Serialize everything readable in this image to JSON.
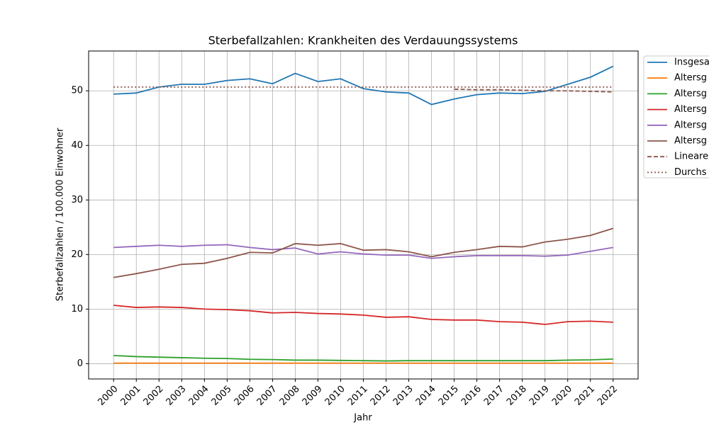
{
  "chart_data": {
    "type": "line",
    "title": "Sterbefallzahlen: Krankheiten des Verdauungssystems",
    "xlabel": "Jahr",
    "ylabel": "Sterbefallzahlen / 100.000 Einwohner",
    "x": [
      2000,
      2001,
      2002,
      2003,
      2004,
      2005,
      2006,
      2007,
      2008,
      2009,
      2010,
      2011,
      2012,
      2013,
      2014,
      2015,
      2016,
      2017,
      2018,
      2019,
      2020,
      2021,
      2022
    ],
    "xlim": [
      1998.9,
      2023.1
    ],
    "xticks": [
      2000,
      2001,
      2002,
      2003,
      2004,
      2005,
      2006,
      2007,
      2008,
      2009,
      2010,
      2011,
      2012,
      2013,
      2014,
      2015,
      2016,
      2017,
      2018,
      2019,
      2020,
      2021,
      2022
    ],
    "ylim": [
      -2.8,
      57.3
    ],
    "yticks": [
      0,
      10,
      20,
      30,
      40,
      50
    ],
    "grid": true,
    "legend": "outside upper right",
    "series": [
      {
        "name": "Insgesa",
        "color": "#1f77b4",
        "style": "solid",
        "values": [
          49.4,
          49.6,
          50.7,
          51.2,
          51.2,
          51.9,
          52.2,
          51.3,
          53.2,
          51.7,
          52.2,
          50.4,
          49.8,
          49.6,
          47.5,
          48.5,
          49.3,
          49.6,
          49.5,
          49.9,
          51.2,
          52.5,
          54.5
        ]
      },
      {
        "name": "Altersg",
        "color": "#ff7f0e",
        "style": "solid",
        "values": [
          0.1,
          0.1,
          0.1,
          0.1,
          0.1,
          0.1,
          0.1,
          0.1,
          0.1,
          0.1,
          0.1,
          0.1,
          0.1,
          0.1,
          0.1,
          0.1,
          0.1,
          0.1,
          0.1,
          0.1,
          0.1,
          0.1,
          0.1
        ]
      },
      {
        "name": "Altersg",
        "color": "#2ca02c",
        "style": "solid",
        "values": [
          1.5,
          1.3,
          1.2,
          1.1,
          1.0,
          0.95,
          0.8,
          0.75,
          0.65,
          0.65,
          0.6,
          0.55,
          0.5,
          0.55,
          0.55,
          0.55,
          0.55,
          0.55,
          0.55,
          0.55,
          0.65,
          0.7,
          0.85
        ]
      },
      {
        "name": "Altersg",
        "color": "#d62728",
        "style": "solid",
        "values": [
          10.7,
          10.3,
          10.4,
          10.3,
          10.0,
          9.9,
          9.7,
          9.3,
          9.4,
          9.2,
          9.1,
          8.9,
          8.5,
          8.6,
          8.1,
          8.0,
          8.0,
          7.7,
          7.6,
          7.2,
          7.7,
          7.8,
          7.6
        ]
      },
      {
        "name": "Altersg",
        "color": "#9467bd",
        "style": "solid",
        "values": [
          21.3,
          21.5,
          21.7,
          21.5,
          21.7,
          21.8,
          21.3,
          20.9,
          21.2,
          20.1,
          20.5,
          20.1,
          19.9,
          19.9,
          19.3,
          19.6,
          19.8,
          19.8,
          19.8,
          19.7,
          19.9,
          20.6,
          21.3
        ]
      },
      {
        "name": "Altersg",
        "color": "#8c564b",
        "style": "solid",
        "values": [
          15.8,
          16.5,
          17.3,
          18.2,
          18.4,
          19.3,
          20.4,
          20.3,
          22.0,
          21.7,
          22.0,
          20.8,
          20.9,
          20.5,
          19.6,
          20.4,
          20.9,
          21.5,
          21.4,
          22.3,
          22.8,
          23.5,
          24.8
        ]
      },
      {
        "name": "Lineare",
        "color": "#8c564b",
        "style": "dashed",
        "values": [
          null,
          null,
          null,
          null,
          null,
          null,
          null,
          null,
          null,
          null,
          null,
          null,
          null,
          null,
          null,
          50.3,
          50.2,
          50.2,
          50.1,
          50.0,
          50.0,
          49.9,
          49.8
        ]
      },
      {
        "name": "Durchs",
        "color": "#8c564b",
        "style": "dotted",
        "values": [
          50.7,
          50.7,
          50.7,
          50.7,
          50.7,
          50.7,
          50.7,
          50.7,
          50.7,
          50.7,
          50.7,
          50.7,
          50.7,
          50.7,
          50.7,
          50.7,
          50.7,
          50.7,
          50.7,
          50.7,
          50.7,
          50.7,
          50.7
        ]
      }
    ]
  }
}
